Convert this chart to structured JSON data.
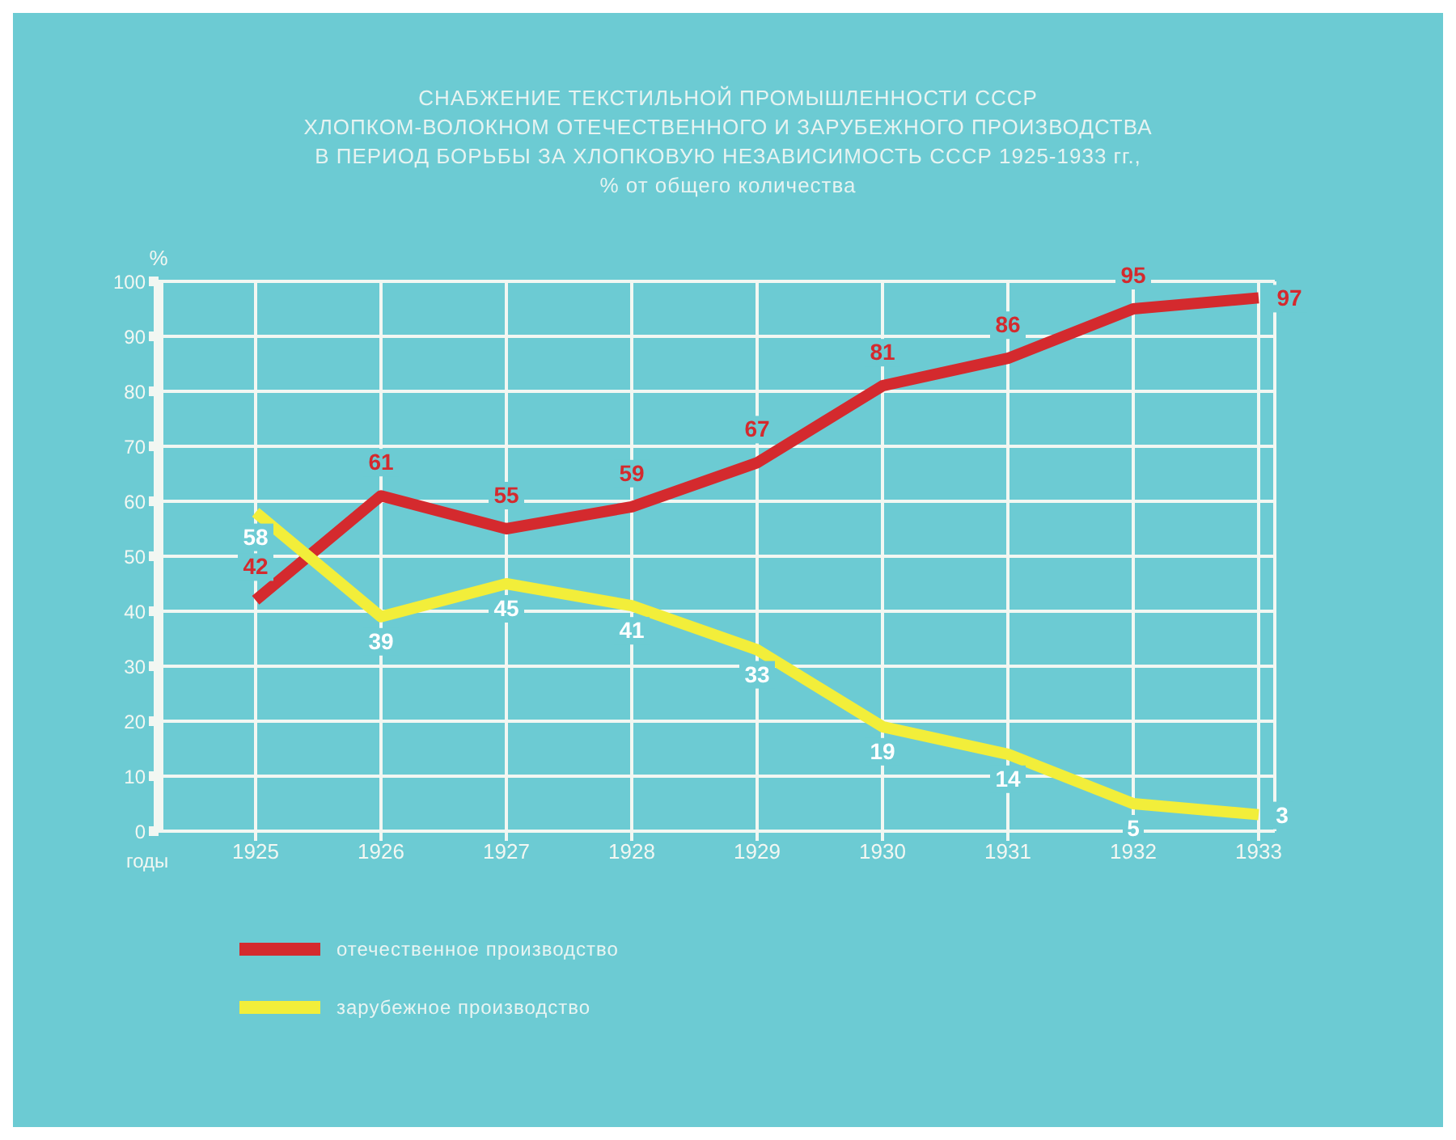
{
  "chart_data": {
    "type": "line",
    "title": "СНАБЖЕНИЕ ТЕКСТИЛЬНОЙ ПРОМЫШЛЕННОСТИ СССР\nХЛОПКОМ-ВОЛОКНОМ ОТЕЧЕСТВЕННОГО И ЗАРУБЕЖНОГО ПРОИЗВОДСТВА\nВ ПЕРИОД БОРЬБЫ ЗА ХЛОПКОВУЮ НЕЗАВИСИМОСТЬ СССР 1925-1933 гг.,",
    "subtitle": "% от общего количества",
    "xlabel": "годы",
    "ylabel": "%",
    "categories": [
      "1925",
      "1926",
      "1927",
      "1928",
      "1929",
      "1930",
      "1931",
      "1932",
      "1933"
    ],
    "series": [
      {
        "name": "отечественное производство",
        "color": "#d42a2e",
        "values": [
          42,
          61,
          55,
          59,
          67,
          81,
          86,
          95,
          97
        ]
      },
      {
        "name": "зарубежное производство",
        "color": "#f2ee3a",
        "values": [
          58,
          39,
          45,
          41,
          33,
          19,
          14,
          5,
          3
        ]
      }
    ],
    "ylim": [
      0,
      100
    ],
    "yticks": [
      0,
      10,
      20,
      30,
      40,
      50,
      60,
      70,
      80,
      90,
      100
    ],
    "grid": true,
    "legend": "bottom left",
    "data_labels": true,
    "marker": "none",
    "line_style": "solid"
  }
}
